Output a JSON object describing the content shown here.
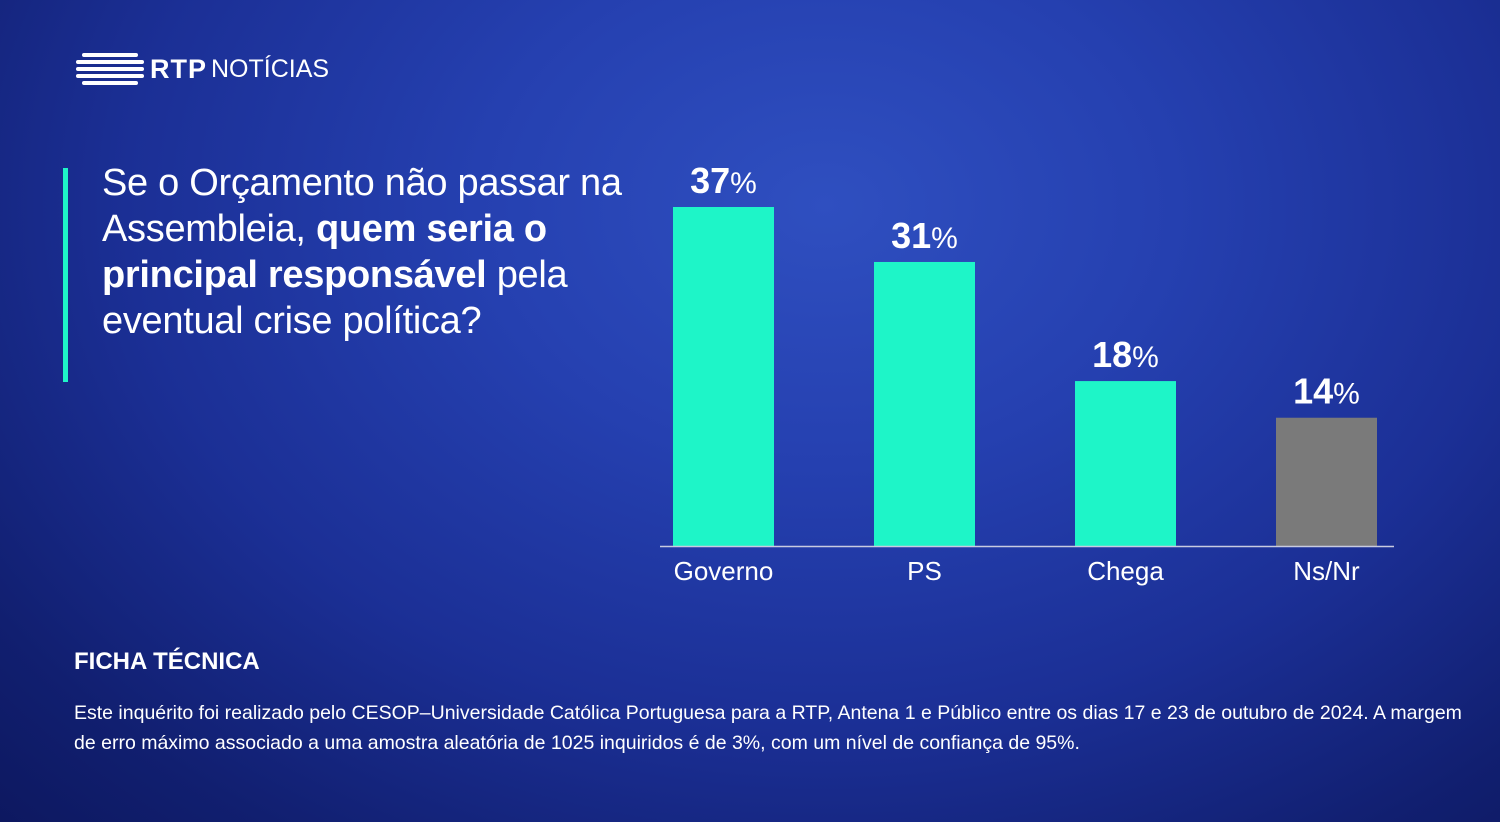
{
  "logo": {
    "brand": "RTP",
    "section": "NOTÍCIAS"
  },
  "question": {
    "part1": "Se o Orçamento não passar na Assembleia,",
    "bold": "quem seria o principal responsável",
    "part2": "pela eventual crise política?"
  },
  "chart_data": {
    "type": "bar",
    "title": "Se o Orçamento não passar na Assembleia, quem seria o principal responsável pela eventual crise política?",
    "categories": [
      "Governo",
      "PS",
      "Chega",
      "Ns/Nr"
    ],
    "values": [
      37,
      31,
      18,
      14
    ],
    "labels": [
      "37%",
      "31%",
      "18%",
      "14%"
    ],
    "colors": [
      "#1ef5c8",
      "#1ef5c8",
      "#1ef5c8",
      "#7a7a7a"
    ],
    "xlabel": "",
    "ylabel": "",
    "ylim": [
      0,
      37
    ],
    "grid": false
  },
  "footer": {
    "heading": "FICHA TÉCNICA",
    "text": "Este inquérito foi realizado pelo CESOP–Universidade Católica Portuguesa para a RTP, Antena 1 e Público entre os dias 17 e 23 de outubro de 2024. A margem de erro máximo associado a uma amostra aleatória de 1025 inquiridos é de 3%, com um nível de confiança de 95%."
  }
}
